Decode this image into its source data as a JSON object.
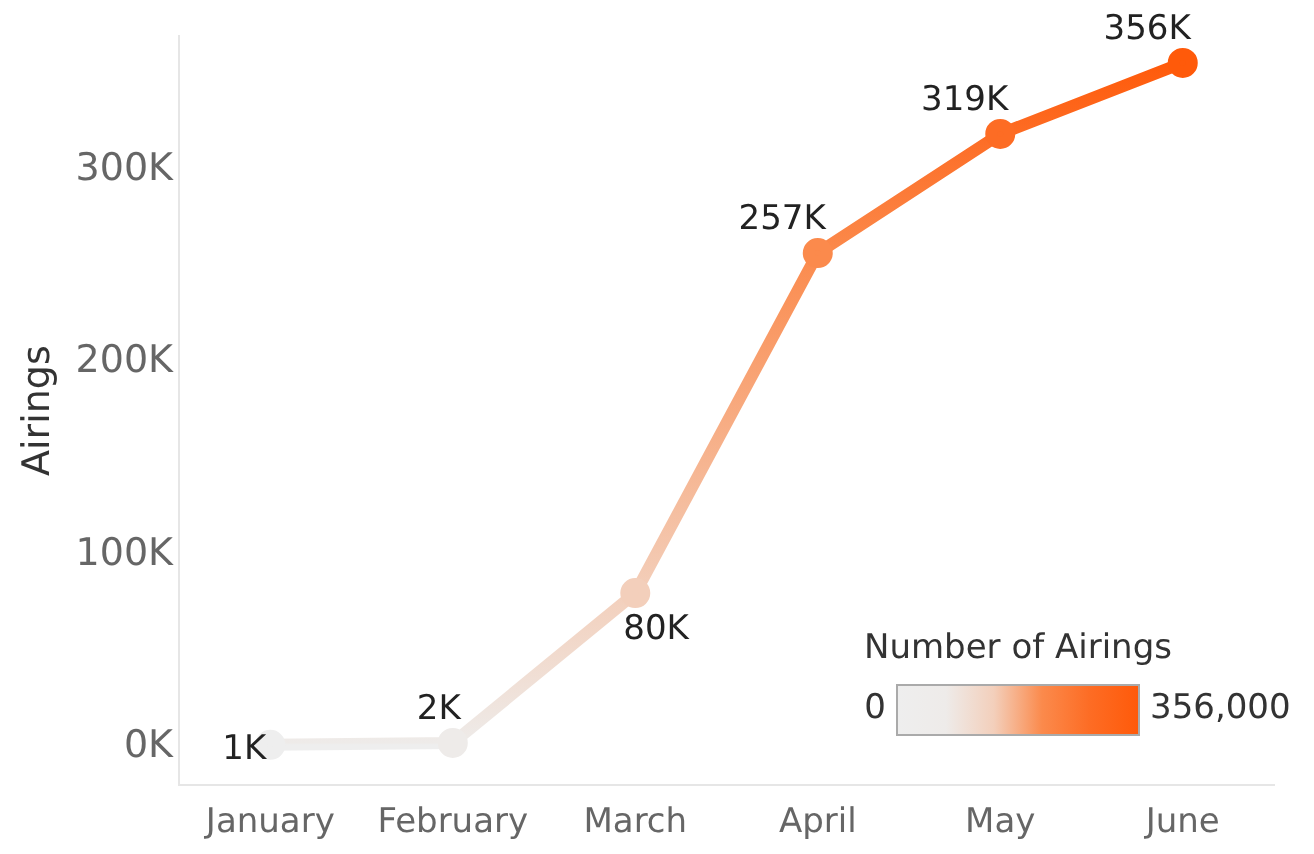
{
  "chart_data": {
    "type": "line",
    "ylabel": "Airings",
    "categories": [
      "January",
      "February",
      "March",
      "April",
      "May",
      "June"
    ],
    "series": [
      {
        "values": [
          1000,
          2000,
          80000,
          257000,
          319000,
          356000
        ],
        "colors": [
          "#eeeeee",
          "#eeebe9",
          "#f3cfbb",
          "#fb8a4c",
          "#fd6c24",
          "#ff5a0a"
        ],
        "value_labels": [
          "1K",
          "2K",
          "80K",
          "257K",
          "319K",
          "356K"
        ]
      }
    ],
    "ylim": [
      -20000,
      370000
    ],
    "yticks": [
      {
        "value": 0,
        "label": "0K"
      },
      {
        "value": 100000,
        "label": "100K"
      },
      {
        "value": 200000,
        "label": "200K"
      },
      {
        "value": 300000,
        "label": "300K"
      }
    ],
    "annotations": [
      "Number of Airings",
      "0",
      "356,000"
    ],
    "grid": false,
    "legend": false,
    "marker": "circle",
    "line_style": "solid"
  }
}
